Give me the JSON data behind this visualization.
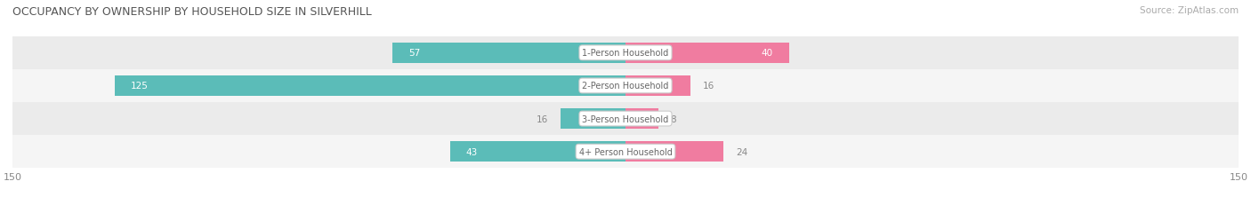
{
  "title": "OCCUPANCY BY OWNERSHIP BY HOUSEHOLD SIZE IN SILVERHILL",
  "source": "Source: ZipAtlas.com",
  "categories": [
    "1-Person Household",
    "2-Person Household",
    "3-Person Household",
    "4+ Person Household"
  ],
  "owner_values": [
    57,
    125,
    16,
    43
  ],
  "renter_values": [
    40,
    16,
    8,
    24
  ],
  "owner_color": "#5bbcb8",
  "renter_color": "#f07ca0",
  "axis_max": 150,
  "title_fontsize": 9,
  "source_fontsize": 7.5,
  "tick_fontsize": 8,
  "bar_height": 0.62,
  "row_bg_colors": [
    "#ebebeb",
    "#f5f5f5",
    "#ebebeb",
    "#f5f5f5"
  ]
}
